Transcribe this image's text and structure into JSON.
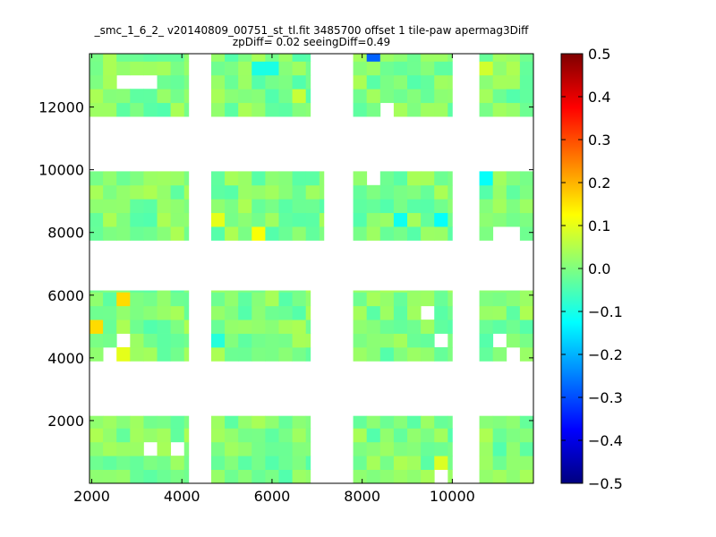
{
  "chart_data": {
    "type": "heatmap",
    "title": "_smc_1_6_2_ v20140809_00751_st_tl.fit 3485700 offset 1 tile-paw apermag3Diff",
    "subtitle": "zpDiff= 0.02 seeingDiff=0.49",
    "xlabel": "",
    "ylabel": "",
    "xlim": [
      1950,
      11800
    ],
    "ylim": [
      0,
      13700
    ],
    "x_ticks": [
      2000,
      4000,
      6000,
      8000,
      10000
    ],
    "x_tick_labels": [
      "2000",
      "4000",
      "6000",
      "8000",
      "10000"
    ],
    "y_ticks": [
      2000,
      4000,
      6000,
      8000,
      10000,
      12000
    ],
    "y_tick_labels": [
      "2000",
      "4000",
      "6000",
      "8000",
      "10000",
      "12000"
    ],
    "colorbar": {
      "colormap": "jet",
      "range": [
        -0.5,
        0.5
      ],
      "ticks": [
        0.5,
        0.4,
        0.3,
        0.2,
        0.1,
        0.0,
        -0.1,
        -0.2,
        -0.3,
        -0.4,
        -0.5
      ],
      "tick_labels": [
        "0.5",
        "0.4",
        "0.3",
        "0.2",
        "0.1",
        "0.0",
        "−0.1",
        "−0.2",
        "−0.3",
        "−0.4",
        "−0.5"
      ]
    },
    "cell_width": 300,
    "cell_height": 440,
    "grid": false,
    "regions": [
      {
        "x": [
          1950,
          4150
        ],
        "y": [
          0,
          2150
        ]
      },
      {
        "x": [
          4650,
          6850
        ],
        "y": [
          0,
          2150
        ]
      },
      {
        "x": [
          7800,
          10000
        ],
        "y": [
          0,
          2150
        ]
      },
      {
        "x": [
          10600,
          11800
        ],
        "y": [
          0,
          2150
        ]
      },
      {
        "x": [
          1950,
          4150
        ],
        "y": [
          3900,
          6150
        ]
      },
      {
        "x": [
          4650,
          6850
        ],
        "y": [
          3900,
          6150
        ]
      },
      {
        "x": [
          7800,
          10000
        ],
        "y": [
          3900,
          6150
        ]
      },
      {
        "x": [
          10600,
          11800
        ],
        "y": [
          3900,
          6150
        ]
      },
      {
        "x": [
          1950,
          4150
        ],
        "y": [
          7750,
          9950
        ]
      },
      {
        "x": [
          4650,
          7150
        ],
        "y": [
          7750,
          9950
        ]
      },
      {
        "x": [
          7800,
          10000
        ],
        "y": [
          7750,
          9950
        ]
      },
      {
        "x": [
          10600,
          11800
        ],
        "y": [
          7750,
          9950
        ]
      },
      {
        "x": [
          1950,
          4150
        ],
        "y": [
          11700,
          13700
        ]
      },
      {
        "x": [
          4650,
          6850
        ],
        "y": [
          11700,
          13700
        ]
      },
      {
        "x": [
          7800,
          10000
        ],
        "y": [
          11700,
          13700
        ]
      },
      {
        "x": [
          10600,
          11800
        ],
        "y": [
          11700,
          13700
        ]
      }
    ],
    "missing_cells": [
      {
        "x": 2600,
        "y": 12900
      },
      {
        "x": 2900,
        "y": 12900
      },
      {
        "x": 3200,
        "y": 12900
      },
      {
        "x": 8600,
        "y": 12100
      },
      {
        "x": 4950,
        "y": 12900
      },
      {
        "x": 5850,
        "y": 9600
      },
      {
        "x": 8150,
        "y": 9600
      },
      {
        "x": 10950,
        "y": 8100
      },
      {
        "x": 11250,
        "y": 8100
      },
      {
        "x": 9400,
        "y": 5300
      },
      {
        "x": 9700,
        "y": 4450
      },
      {
        "x": 2600,
        "y": 4450
      },
      {
        "x": 4950,
        "y": 4100
      },
      {
        "x": 11250,
        "y": 4100
      },
      {
        "x": 10950,
        "y": 4450
      },
      {
        "x": 2300,
        "y": 4100
      },
      {
        "x": 3800,
        "y": 1250
      },
      {
        "x": 3200,
        "y": 1250
      },
      {
        "x": 4400,
        "y": 1250
      },
      {
        "x": 9700,
        "y": 420
      },
      {
        "x": 4950,
        "y": 1250
      }
    ],
    "highlights": [
      {
        "x": 8300,
        "y": 13550,
        "value": -0.28
      },
      {
        "x": 10800,
        "y": 9600,
        "value": -0.12
      },
      {
        "x": 8750,
        "y": 8550,
        "value": -0.11
      },
      {
        "x": 9800,
        "y": 8550,
        "value": -0.12
      },
      {
        "x": 5850,
        "y": 13200,
        "value": -0.1
      },
      {
        "x": 2750,
        "y": 5850,
        "value": 0.16
      },
      {
        "x": 2150,
        "y": 4950,
        "value": 0.16
      },
      {
        "x": 2750,
        "y": 4100,
        "value": 0.1
      },
      {
        "x": 5800,
        "y": 7950,
        "value": 0.12
      },
      {
        "x": 4800,
        "y": 8400,
        "value": 0.1
      },
      {
        "x": 9850,
        "y": 850,
        "value": 0.09
      },
      {
        "x": 10750,
        "y": 13200,
        "value": 0.08
      },
      {
        "x": 6550,
        "y": 12500,
        "value": 0.07
      },
      {
        "x": 4800,
        "y": 4550,
        "value": -0.09
      }
    ]
  }
}
